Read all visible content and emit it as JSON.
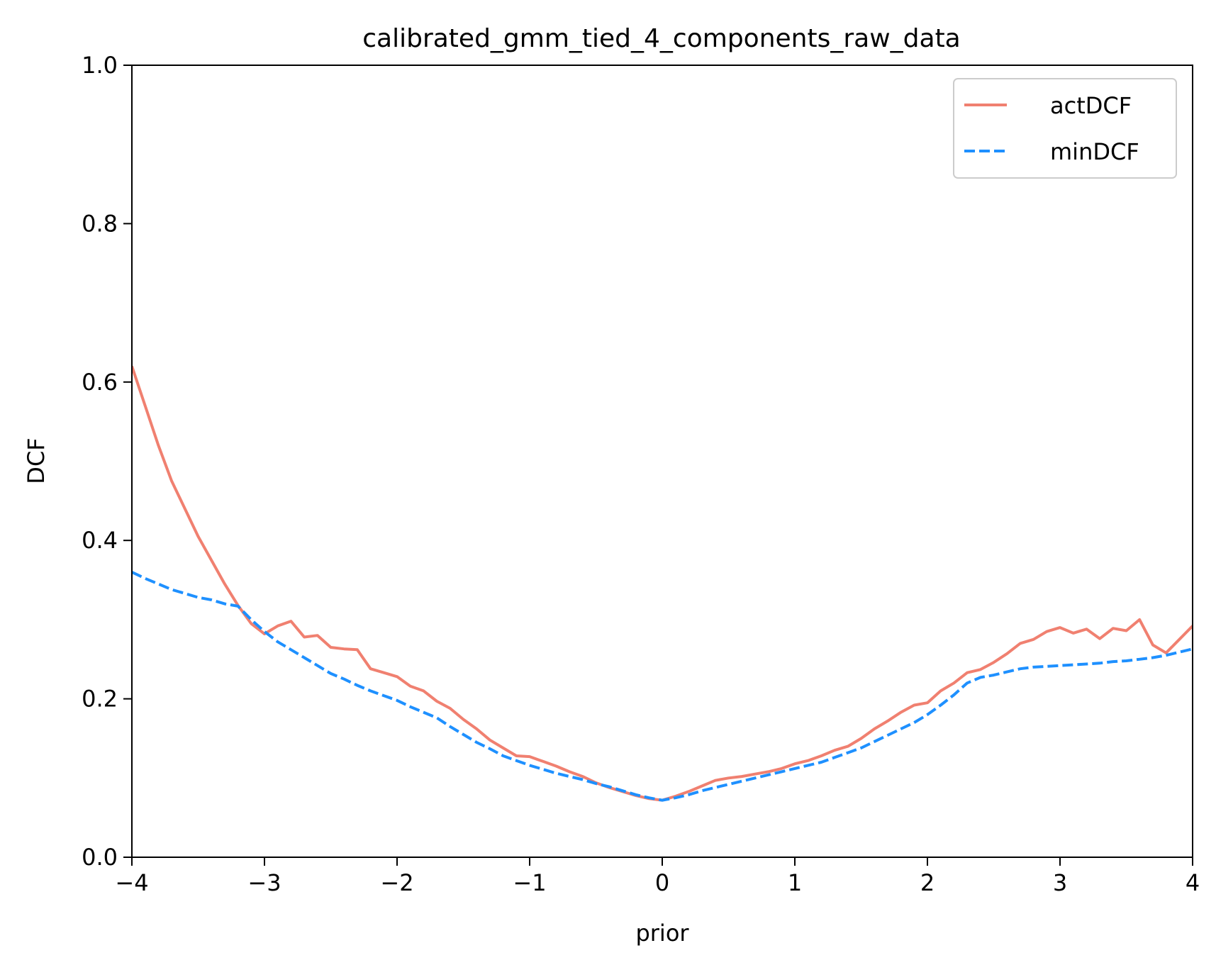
{
  "chart_data": {
    "type": "line",
    "title": "calibrated_gmm_tied_4_components_raw_data",
    "xlabel": "prior",
    "ylabel": "DCF",
    "xlim": [
      -4,
      4
    ],
    "ylim": [
      0,
      1
    ],
    "x_ticks": [
      -4,
      -3,
      -2,
      -1,
      0,
      1,
      2,
      3,
      4
    ],
    "x_tick_labels": [
      "−4",
      "−3",
      "−2",
      "−1",
      "0",
      "1",
      "2",
      "3",
      "4"
    ],
    "y_ticks": [
      0.0,
      0.2,
      0.4,
      0.6,
      0.8,
      1.0
    ],
    "y_tick_labels": [
      "0.0",
      "0.2",
      "0.4",
      "0.6",
      "0.8",
      "1.0"
    ],
    "grid": false,
    "legend_position": "top-right",
    "series": [
      {
        "name": "actDCF",
        "color": "#f08070",
        "style": "solid",
        "x": [
          -4.0,
          -3.9,
          -3.8,
          -3.7,
          -3.6,
          -3.5,
          -3.4,
          -3.3,
          -3.2,
          -3.1,
          -3.0,
          -2.9,
          -2.8,
          -2.7,
          -2.6,
          -2.5,
          -2.4,
          -2.3,
          -2.2,
          -2.1,
          -2.0,
          -1.9,
          -1.8,
          -1.7,
          -1.6,
          -1.5,
          -1.4,
          -1.3,
          -1.2,
          -1.1,
          -1.0,
          -0.9,
          -0.8,
          -0.7,
          -0.6,
          -0.5,
          -0.4,
          -0.3,
          -0.2,
          -0.1,
          0.0,
          0.1,
          0.2,
          0.3,
          0.4,
          0.5,
          0.6,
          0.7,
          0.8,
          0.9,
          1.0,
          1.1,
          1.2,
          1.3,
          1.4,
          1.5,
          1.6,
          1.7,
          1.8,
          1.9,
          2.0,
          2.1,
          2.2,
          2.3,
          2.4,
          2.5,
          2.6,
          2.7,
          2.8,
          2.9,
          3.0,
          3.1,
          3.2,
          3.3,
          3.4,
          3.5,
          3.6,
          3.7,
          3.8,
          3.9,
          4.0
        ],
        "y": [
          0.62,
          0.57,
          0.52,
          0.475,
          0.44,
          0.405,
          0.375,
          0.345,
          0.318,
          0.295,
          0.282,
          0.292,
          0.298,
          0.278,
          0.28,
          0.265,
          0.263,
          0.262,
          0.238,
          0.233,
          0.228,
          0.216,
          0.21,
          0.197,
          0.188,
          0.174,
          0.162,
          0.148,
          0.138,
          0.128,
          0.127,
          0.121,
          0.115,
          0.108,
          0.102,
          0.094,
          0.088,
          0.083,
          0.078,
          0.074,
          0.072,
          0.077,
          0.083,
          0.09,
          0.097,
          0.1,
          0.102,
          0.105,
          0.108,
          0.112,
          0.118,
          0.122,
          0.128,
          0.135,
          0.14,
          0.15,
          0.162,
          0.172,
          0.183,
          0.192,
          0.195,
          0.21,
          0.22,
          0.233,
          0.237,
          0.246,
          0.257,
          0.27,
          0.275,
          0.285,
          0.29,
          0.283,
          0.288,
          0.276,
          0.289,
          0.286,
          0.3,
          0.268,
          0.258,
          0.275,
          0.292
        ]
      },
      {
        "name": "minDCF",
        "color": "#1e90ff",
        "style": "dashed",
        "x": [
          -4.0,
          -3.9,
          -3.8,
          -3.7,
          -3.6,
          -3.5,
          -3.4,
          -3.3,
          -3.2,
          -3.1,
          -3.0,
          -2.9,
          -2.8,
          -2.7,
          -2.6,
          -2.5,
          -2.4,
          -2.3,
          -2.2,
          -2.1,
          -2.0,
          -1.9,
          -1.8,
          -1.7,
          -1.6,
          -1.5,
          -1.4,
          -1.3,
          -1.2,
          -1.1,
          -1.0,
          -0.9,
          -0.8,
          -0.7,
          -0.6,
          -0.5,
          -0.4,
          -0.3,
          -0.2,
          -0.1,
          0.0,
          0.1,
          0.2,
          0.3,
          0.4,
          0.5,
          0.6,
          0.7,
          0.8,
          0.9,
          1.0,
          1.1,
          1.2,
          1.3,
          1.4,
          1.5,
          1.6,
          1.7,
          1.8,
          1.9,
          2.0,
          2.1,
          2.2,
          2.3,
          2.4,
          2.5,
          2.6,
          2.7,
          2.8,
          2.9,
          3.0,
          3.1,
          3.2,
          3.3,
          3.4,
          3.5,
          3.6,
          3.7,
          3.8,
          3.9,
          4.0
        ],
        "y": [
          0.36,
          0.352,
          0.345,
          0.338,
          0.333,
          0.328,
          0.325,
          0.32,
          0.317,
          0.3,
          0.285,
          0.272,
          0.262,
          0.252,
          0.242,
          0.232,
          0.225,
          0.217,
          0.21,
          0.204,
          0.198,
          0.19,
          0.183,
          0.176,
          0.165,
          0.155,
          0.145,
          0.137,
          0.128,
          0.122,
          0.116,
          0.111,
          0.106,
          0.102,
          0.098,
          0.093,
          0.089,
          0.084,
          0.079,
          0.075,
          0.072,
          0.075,
          0.079,
          0.084,
          0.088,
          0.092,
          0.096,
          0.1,
          0.104,
          0.108,
          0.112,
          0.116,
          0.12,
          0.126,
          0.132,
          0.138,
          0.146,
          0.154,
          0.162,
          0.17,
          0.18,
          0.192,
          0.205,
          0.22,
          0.227,
          0.23,
          0.234,
          0.238,
          0.24,
          0.241,
          0.242,
          0.243,
          0.244,
          0.245,
          0.247,
          0.248,
          0.25,
          0.252,
          0.255,
          0.259,
          0.263
        ]
      }
    ]
  }
}
